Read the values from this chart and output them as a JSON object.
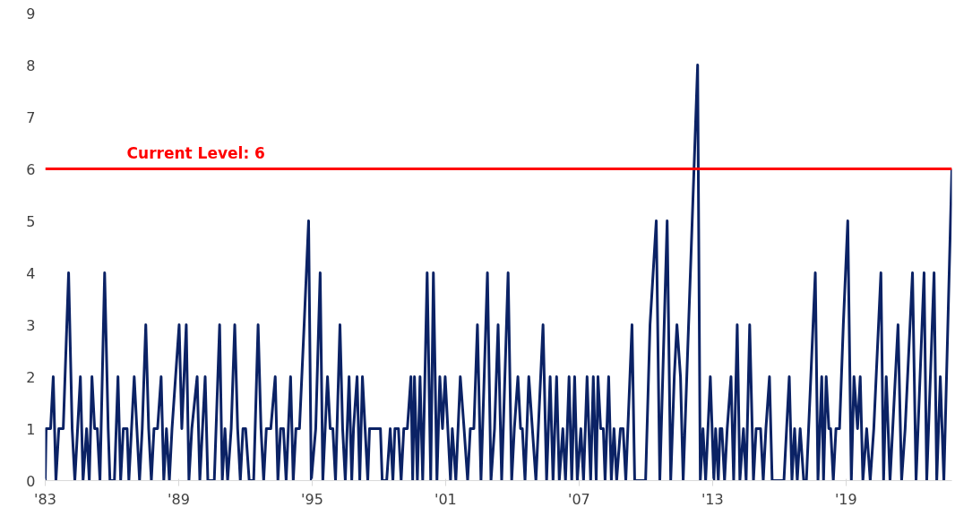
{
  "chart_data": {
    "type": "line",
    "x": [
      1983.0,
      1983.04,
      1983.24,
      1983.36,
      1983.48,
      1983.61,
      1983.81,
      1984.05,
      1984.21,
      1984.33,
      1984.58,
      1984.7,
      1984.86,
      1984.98,
      1985.1,
      1985.22,
      1985.34,
      1985.46,
      1985.67,
      1985.83,
      1985.91,
      1986.11,
      1986.27,
      1986.39,
      1986.51,
      1986.68,
      1986.76,
      1986.88,
      1987.0,
      1987.12,
      1987.24,
      1987.36,
      1987.52,
      1987.65,
      1987.77,
      1987.89,
      1988.05,
      1988.21,
      1988.33,
      1988.45,
      1988.58,
      1988.7,
      1989.02,
      1989.14,
      1989.34,
      1989.46,
      1989.59,
      1989.83,
      1989.95,
      1990.07,
      1990.19,
      1990.31,
      1990.6,
      1990.84,
      1990.96,
      1991.08,
      1991.2,
      1991.36,
      1991.52,
      1991.65,
      1991.77,
      1991.89,
      1992.01,
      1992.17,
      1992.37,
      1992.57,
      1992.7,
      1992.82,
      1992.94,
      1993.14,
      1993.34,
      1993.46,
      1993.58,
      1993.71,
      1993.83,
      1994.03,
      1994.15,
      1994.27,
      1994.43,
      1994.64,
      1994.84,
      1994.96,
      1995.16,
      1995.36,
      1995.48,
      1995.69,
      1995.81,
      1995.93,
      1996.05,
      1996.25,
      1996.37,
      1996.49,
      1996.66,
      1996.78,
      1996.86,
      1997.02,
      1997.14,
      1997.26,
      1997.38,
      1997.5,
      1997.58,
      1998.07,
      1998.15,
      1998.35,
      1998.51,
      1998.63,
      1998.72,
      1998.88,
      1999.0,
      1999.12,
      1999.28,
      1999.44,
      1999.52,
      1999.6,
      1999.73,
      1999.85,
      1999.97,
      2000.17,
      2000.33,
      2000.45,
      2000.61,
      2000.74,
      2000.86,
      2000.98,
      2001.1,
      2001.22,
      2001.3,
      2001.46,
      2001.66,
      2001.83,
      2001.99,
      2002.11,
      2002.27,
      2002.43,
      2002.59,
      2002.88,
      2003.04,
      2003.2,
      2003.36,
      2003.52,
      2003.81,
      2003.97,
      2004.09,
      2004.25,
      2004.37,
      2004.45,
      2004.57,
      2004.74,
      2004.9,
      2005.06,
      2005.38,
      2005.54,
      2005.7,
      2005.83,
      2005.99,
      2006.11,
      2006.27,
      2006.39,
      2006.55,
      2006.67,
      2006.8,
      2006.92,
      2007.08,
      2007.2,
      2007.36,
      2007.52,
      2007.64,
      2007.77,
      2007.85,
      2007.97,
      2008.09,
      2008.17,
      2008.33,
      2008.45,
      2008.57,
      2008.69,
      2008.86,
      2008.98,
      2009.1,
      2009.38,
      2009.5,
      2009.66,
      2009.99,
      2010.19,
      2010.47,
      2010.63,
      2010.96,
      2011.12,
      2011.28,
      2011.4,
      2011.56,
      2011.68,
      2012.33,
      2012.45,
      2012.57,
      2012.69,
      2012.9,
      2013.06,
      2013.14,
      2013.26,
      2013.34,
      2013.42,
      2013.54,
      2013.66,
      2013.83,
      2013.95,
      2014.11,
      2014.23,
      2014.39,
      2014.51,
      2014.67,
      2014.84,
      2014.96,
      2015.16,
      2015.28,
      2015.4,
      2015.56,
      2015.68,
      2016.21,
      2016.33,
      2016.45,
      2016.57,
      2016.69,
      2016.81,
      2016.94,
      2017.1,
      2017.22,
      2017.62,
      2017.74,
      2017.91,
      2017.99,
      2018.11,
      2018.23,
      2018.31,
      2018.43,
      2018.55,
      2018.71,
      2018.88,
      2019.08,
      2019.24,
      2019.36,
      2019.52,
      2019.64,
      2019.76,
      2019.93,
      2020.09,
      2020.25,
      2020.57,
      2020.69,
      2020.81,
      2020.98,
      2021.34,
      2021.5,
      2021.66,
      2021.99,
      2022.15,
      2022.51,
      2022.63,
      2022.96,
      2023.08,
      2023.24,
      2023.4,
      2023.76
    ],
    "series": [
      {
        "color": "#0b2265",
        "values": [
          0,
          1,
          1,
          2,
          0,
          1,
          1,
          4,
          1,
          0,
          2,
          0,
          1,
          0,
          2,
          1,
          1,
          0,
          4,
          1,
          0,
          0,
          2,
          0,
          1,
          1,
          0,
          1,
          2,
          1,
          0,
          1,
          3,
          1,
          0,
          1,
          1,
          2,
          0,
          1,
          0,
          1,
          3,
          1,
          3,
          0,
          1,
          2,
          0,
          1,
          2,
          0,
          0,
          3,
          0,
          1,
          0,
          1,
          3,
          1,
          0,
          1,
          1,
          0,
          0,
          3,
          1,
          0,
          1,
          1,
          2,
          0,
          1,
          1,
          0,
          2,
          0,
          1,
          1,
          3,
          5,
          0,
          1,
          4,
          0,
          2,
          1,
          1,
          0,
          3,
          1,
          0,
          2,
          0,
          1,
          2,
          0,
          2,
          1,
          0,
          1,
          1,
          0,
          0,
          1,
          0,
          1,
          1,
          0,
          1,
          1,
          2,
          0,
          2,
          0,
          2,
          0,
          4,
          0,
          4,
          0,
          2,
          1,
          2,
          1,
          0,
          1,
          0,
          2,
          1,
          0,
          1,
          1,
          3,
          0,
          4,
          0,
          1,
          3,
          0,
          4,
          0,
          1,
          2,
          1,
          1,
          0,
          2,
          1,
          0,
          3,
          0,
          2,
          0,
          2,
          0,
          1,
          0,
          2,
          0,
          2,
          0,
          1,
          0,
          2,
          0,
          2,
          0,
          2,
          1,
          1,
          0,
          2,
          0,
          1,
          0,
          1,
          1,
          0,
          3,
          0,
          0,
          0,
          3,
          5,
          0,
          5,
          0,
          2,
          3,
          2,
          0,
          8,
          0,
          1,
          0,
          2,
          0,
          1,
          0,
          1,
          1,
          0,
          1,
          2,
          0,
          3,
          0,
          1,
          0,
          3,
          0,
          1,
          1,
          0,
          1,
          2,
          0,
          0,
          1,
          2,
          0,
          1,
          0,
          1,
          0,
          0,
          4,
          0,
          2,
          0,
          2,
          1,
          1,
          0,
          1,
          1,
          3,
          5,
          0,
          2,
          1,
          2,
          0,
          1,
          0,
          1,
          4,
          0,
          2,
          0,
          3,
          0,
          1,
          4,
          0,
          4,
          0,
          4,
          0,
          2,
          0,
          6
        ]
      }
    ],
    "xlim": [
      1983,
      2023.76
    ],
    "xticks": [
      {
        "value": 1983,
        "label": "'83"
      },
      {
        "value": 1989,
        "label": "'89"
      },
      {
        "value": 1995,
        "label": "'95"
      },
      {
        "value": 2001,
        "label": "'01"
      },
      {
        "value": 2007,
        "label": "'07"
      },
      {
        "value": 2013,
        "label": "'13"
      },
      {
        "value": 2019,
        "label": "'19"
      }
    ],
    "ylim": [
      0,
      9
    ],
    "yticks": [
      0,
      1,
      2,
      3,
      4,
      5,
      6,
      7,
      8,
      9
    ],
    "grid": false,
    "marker": "none",
    "line_style": "solid",
    "ref_lines": [
      {
        "axis": "y",
        "value": 6,
        "label": "Current Level: 6",
        "color": "#ff0000"
      }
    ]
  }
}
